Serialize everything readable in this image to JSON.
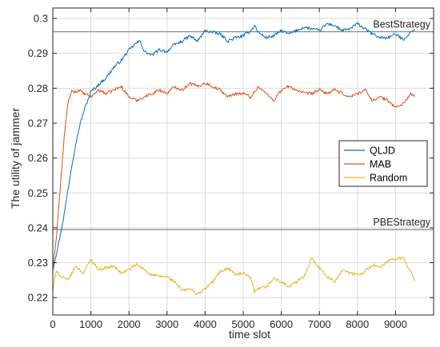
{
  "chart_data": {
    "type": "line",
    "title": "",
    "xlabel": "time slot",
    "ylabel": "The utility of jammer",
    "xlim": [
      0,
      10000
    ],
    "ylim": [
      0.215,
      0.303
    ],
    "x_ticks": [
      0,
      1000,
      2000,
      3000,
      4000,
      5000,
      6000,
      7000,
      8000,
      9000
    ],
    "x_tick_labels": [
      "0",
      "1000",
      "2000",
      "3000",
      "4000",
      "5000",
      "6000",
      "7000",
      "8000",
      "9000"
    ],
    "y_ticks": [
      0.22,
      0.23,
      0.24,
      0.25,
      0.26,
      0.27,
      0.28,
      0.29,
      0.3
    ],
    "y_tick_labels": [
      "0.22",
      "0.23",
      "0.24",
      "0.25",
      "0.26",
      "0.27",
      "0.28",
      "0.29",
      "0.3"
    ],
    "grid": true,
    "legend_position": "right",
    "reference_lines": [
      {
        "label": "BestStrategy",
        "y": 0.2962,
        "color": "#808080"
      },
      {
        "label": "PBEStrategy",
        "y": 0.2395,
        "color": "#808080"
      }
    ],
    "series": [
      {
        "name": "QLJD",
        "color": "#0072BD",
        "x": [
          0,
          100,
          200,
          300,
          400,
          500,
          600,
          700,
          800,
          900,
          1000,
          1200,
          1400,
          1600,
          1800,
          2000,
          2200,
          2300,
          2400,
          2600,
          2800,
          3000,
          3200,
          3400,
          3600,
          3800,
          4000,
          4200,
          4400,
          4600,
          4800,
          5000,
          5200,
          5300,
          5400,
          5600,
          5800,
          6000,
          6200,
          6400,
          6600,
          6800,
          7000,
          7200,
          7400,
          7600,
          7800,
          8000,
          8200,
          8400,
          8600,
          8800,
          9000,
          9200,
          9400,
          9500
        ],
        "y": [
          0.228,
          0.233,
          0.238,
          0.244,
          0.251,
          0.258,
          0.264,
          0.269,
          0.273,
          0.276,
          0.279,
          0.281,
          0.283,
          0.286,
          0.288,
          0.291,
          0.293,
          0.2935,
          0.2905,
          0.2895,
          0.291,
          0.2905,
          0.2925,
          0.2935,
          0.295,
          0.2935,
          0.2965,
          0.296,
          0.2955,
          0.2935,
          0.2945,
          0.295,
          0.2965,
          0.298,
          0.296,
          0.2945,
          0.295,
          0.2965,
          0.2955,
          0.2965,
          0.2975,
          0.297,
          0.2965,
          0.2985,
          0.298,
          0.2965,
          0.297,
          0.2985,
          0.297,
          0.2955,
          0.2945,
          0.2945,
          0.2955,
          0.294,
          0.296,
          0.297
        ]
      },
      {
        "name": "MAB",
        "color": "#D95319",
        "x": [
          0,
          100,
          200,
          300,
          400,
          500,
          600,
          700,
          800,
          1000,
          1200,
          1400,
          1600,
          1800,
          2000,
          2200,
          2400,
          2600,
          2800,
          3000,
          3200,
          3400,
          3600,
          3800,
          4000,
          4200,
          4400,
          4600,
          4800,
          5000,
          5200,
          5400,
          5600,
          5800,
          6000,
          6200,
          6400,
          6600,
          6800,
          7000,
          7200,
          7400,
          7600,
          7800,
          8000,
          8200,
          8400,
          8600,
          8800,
          9000,
          9200,
          9400,
          9500
        ],
        "y": [
          0.228,
          0.238,
          0.252,
          0.266,
          0.276,
          0.279,
          0.279,
          0.2795,
          0.2785,
          0.2775,
          0.2795,
          0.2785,
          0.2795,
          0.2805,
          0.2775,
          0.2765,
          0.2775,
          0.2785,
          0.2795,
          0.2785,
          0.2805,
          0.2795,
          0.2815,
          0.2805,
          0.2815,
          0.2805,
          0.2795,
          0.2775,
          0.2785,
          0.2785,
          0.2775,
          0.2805,
          0.2785,
          0.2765,
          0.2795,
          0.2805,
          0.2795,
          0.2785,
          0.2785,
          0.2795,
          0.2785,
          0.2795,
          0.2785,
          0.2775,
          0.2785,
          0.2795,
          0.2765,
          0.2775,
          0.2765,
          0.2745,
          0.2755,
          0.2785,
          0.2775
        ]
      },
      {
        "name": "Random",
        "color": "#EDB120",
        "x": [
          0,
          100,
          200,
          400,
          600,
          800,
          1000,
          1200,
          1400,
          1600,
          1800,
          2000,
          2200,
          2400,
          2600,
          2800,
          3000,
          3200,
          3400,
          3600,
          3800,
          4000,
          4200,
          4400,
          4600,
          4800,
          5000,
          5200,
          5300,
          5400,
          5600,
          5800,
          6000,
          6200,
          6400,
          6600,
          6800,
          7000,
          7200,
          7400,
          7600,
          7800,
          8000,
          8200,
          8400,
          8600,
          8800,
          9000,
          9200,
          9400,
          9500
        ],
        "y": [
          0.222,
          0.228,
          0.226,
          0.225,
          0.229,
          0.227,
          0.231,
          0.228,
          0.2285,
          0.229,
          0.227,
          0.228,
          0.2295,
          0.228,
          0.2265,
          0.226,
          0.226,
          0.2245,
          0.222,
          0.2225,
          0.221,
          0.2225,
          0.2245,
          0.2275,
          0.2285,
          0.2265,
          0.227,
          0.2255,
          0.2215,
          0.2225,
          0.223,
          0.2255,
          0.2245,
          0.223,
          0.2245,
          0.226,
          0.2315,
          0.2285,
          0.226,
          0.2245,
          0.228,
          0.227,
          0.2265,
          0.2275,
          0.2295,
          0.2285,
          0.2305,
          0.231,
          0.2315,
          0.2275,
          0.2245
        ]
      }
    ]
  }
}
